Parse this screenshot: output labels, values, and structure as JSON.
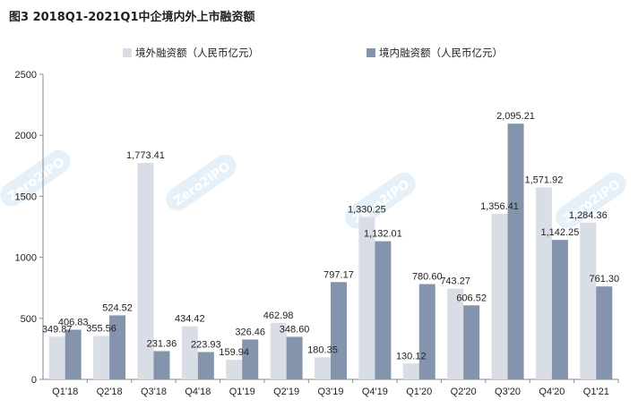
{
  "figure_title": "图3 2018Q1-2021Q1中企境内外上市融资额",
  "watermark": "Zero2IPO Research 清科研究中心",
  "colors": {
    "overseas": "#d9dde6",
    "domestic": "#8494ac",
    "axis": "#8a8a8a"
  },
  "chart_data": {
    "type": "bar",
    "categories": [
      "Q1'18",
      "Q2'18",
      "Q3'18",
      "Q4'18",
      "Q1'19",
      "Q2'19",
      "Q3'19",
      "Q4'19",
      "Q1'20",
      "Q2'20",
      "Q3'20",
      "Q4'20",
      "Q1'21"
    ],
    "series": [
      {
        "name": "境外融资额（人民币亿元）",
        "color": "#d9dde6",
        "values": [
          349.87,
          355.56,
          1773.41,
          434.42,
          159.94,
          462.98,
          180.35,
          1330.25,
          130.12,
          743.27,
          1356.41,
          1571.92,
          1284.36
        ],
        "labels": [
          "349.87",
          "355.56",
          "1,773.41",
          "434.42",
          "159.94",
          "462.98",
          "180.35",
          "1,330.25",
          "130.12",
          "743.27",
          "1,356.41",
          "1,571.92",
          "1,284.36"
        ]
      },
      {
        "name": "境内融资额（人民币亿元）",
        "color": "#8494ac",
        "values": [
          406.83,
          524.52,
          231.36,
          223.93,
          326.46,
          348.6,
          797.17,
          1132.01,
          780.6,
          606.52,
          2095.21,
          1142.25,
          761.3
        ],
        "labels": [
          "406.83",
          "524.52",
          "231.36",
          "223.93",
          "326.46",
          "348.60",
          "797.17",
          "1,132.01",
          "780.60",
          "606.52",
          "2,095.21",
          "1,142.25",
          "761.30"
        ]
      }
    ],
    "ylim": [
      0,
      2500
    ],
    "yticks": [
      0,
      500,
      1000,
      1500,
      2000,
      2500
    ],
    "ytick_labels": [
      "0",
      "500",
      "1000",
      "1500",
      "2000",
      "2500"
    ],
    "xlabel": "",
    "ylabel": "",
    "legend": "top-center",
    "grid": false
  }
}
